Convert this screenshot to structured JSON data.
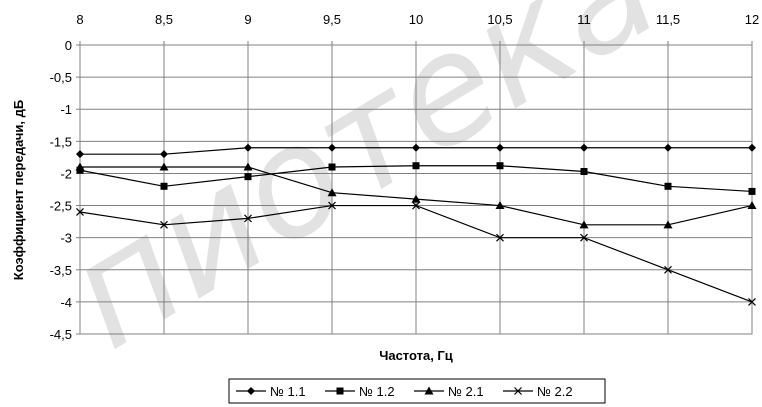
{
  "chart_data": {
    "type": "line",
    "x": [
      8,
      8.5,
      9,
      9.5,
      10,
      10.5,
      11,
      11.5,
      12
    ],
    "x_tick_labels": [
      "8",
      "8,5",
      "9",
      "9,5",
      "10",
      "10,5",
      "11",
      "11,5",
      "12"
    ],
    "xlim": [
      8,
      12
    ],
    "x_axis_position": "top",
    "ylim": [
      -4.5,
      0
    ],
    "y_ticks": [
      0,
      -0.5,
      -1,
      -1.5,
      -2,
      -2.5,
      -3,
      -3.5,
      -4,
      -4.5
    ],
    "y_tick_labels": [
      "0",
      "-0,5",
      "-1",
      "-1,5",
      "-2",
      "-2,5",
      "-3",
      "-3,5",
      "-4",
      "-4,5"
    ],
    "xlabel": "Частота, Гц",
    "ylabel": "Коэффициент передачи, дБ",
    "grid": true,
    "legend_position": "bottom",
    "series": [
      {
        "name": "№ 1.1",
        "marker": "diamond",
        "values": [
          -1.7,
          -1.7,
          -1.6,
          -1.6,
          -1.6,
          -1.6,
          -1.6,
          -1.6,
          -1.6
        ]
      },
      {
        "name": "№ 1.2",
        "marker": "square",
        "values": [
          -1.95,
          -2.2,
          -2.05,
          -1.9,
          -1.88,
          -1.88,
          -1.97,
          -2.2,
          -2.28
        ]
      },
      {
        "name": "№ 2.1",
        "marker": "triangle",
        "values": [
          -1.9,
          -1.9,
          -1.9,
          -2.3,
          -2.4,
          -2.5,
          -2.8,
          -2.8,
          -2.5
        ]
      },
      {
        "name": "№ 2.2",
        "marker": "cross",
        "values": [
          -2.6,
          -2.8,
          -2.7,
          -2.5,
          -2.5,
          -3.0,
          -3.0,
          -3.5,
          -4.0
        ]
      }
    ],
    "line_color": "#000000"
  },
  "watermark": "пиотека"
}
